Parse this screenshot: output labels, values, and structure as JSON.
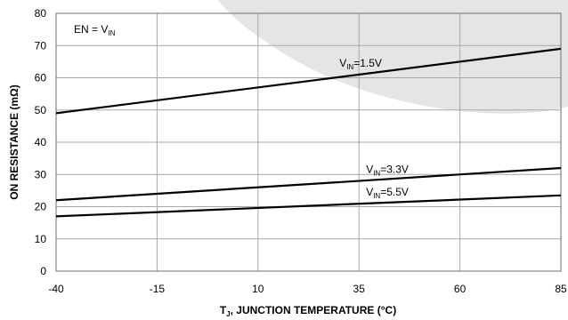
{
  "chart_data": {
    "type": "line",
    "xlabel": {
      "prefix": "T",
      "sub": "J",
      "suffix": ", JUNCTION TEMPERATURE (°C)"
    },
    "ylabel": "ON RESISTANCE (mΩ)",
    "xlim": [
      -40,
      85
    ],
    "ylim": [
      0,
      80
    ],
    "xticks": [
      -40,
      -15,
      10,
      35,
      60,
      85
    ],
    "yticks": [
      0,
      10,
      20,
      30,
      40,
      50,
      60,
      70,
      80
    ],
    "grid": true,
    "annotation": {
      "prefix": "EN = V",
      "sub": "IN",
      "suffix": ""
    },
    "series": [
      {
        "label_prefix": "V",
        "label_sub": "IN",
        "label_suffix": "=1.5V",
        "x": [
          -40,
          85
        ],
        "y": [
          49,
          69
        ]
      },
      {
        "label_prefix": "V",
        "label_sub": "IN",
        "label_suffix": "=3.3V",
        "x": [
          -40,
          85
        ],
        "y": [
          22,
          32
        ]
      },
      {
        "label_prefix": "V",
        "label_sub": "IN",
        "label_suffix": "=5.5V",
        "x": [
          -40,
          85
        ],
        "y": [
          17,
          23.5
        ]
      }
    ]
  }
}
